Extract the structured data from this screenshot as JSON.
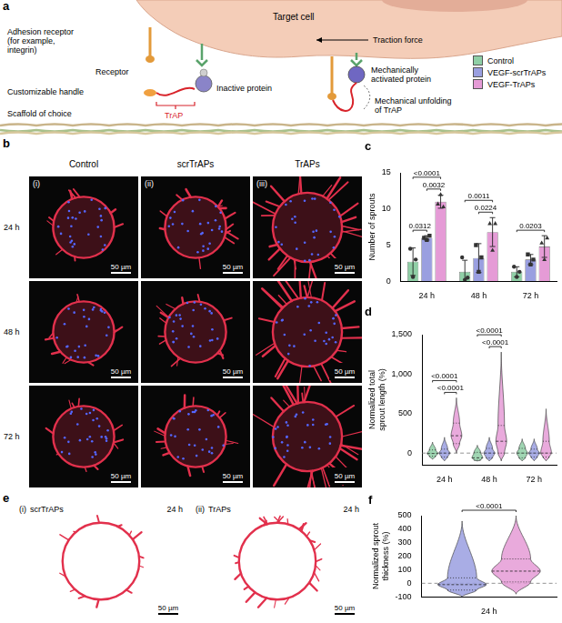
{
  "figure": {
    "a": {
      "letter": "a",
      "target_cell": "Target cell",
      "adhesion_receptor": "Adhesion receptor (for example, integrin)",
      "receptor": "Receptor",
      "traction_force": "Traction force",
      "customizable_handle": "Customizable handle",
      "inactive_protein": "Inactive protein",
      "trap": "TrAP",
      "scaffold": "Scaffold of choice",
      "activated_protein": "Mechanically activated protein",
      "unfolding": "Mechanical unfolding of TrAP"
    },
    "b": {
      "letter": "b",
      "columns": [
        {
          "numeral": "(i)",
          "label": "Control"
        },
        {
          "numeral": "(ii)",
          "label": "scrTrAPs"
        },
        {
          "numeral": "(iii)",
          "label": "TrAPs"
        }
      ],
      "rows": [
        "24 h",
        "48 h",
        "72 h"
      ],
      "scale_bar": "50 µm"
    },
    "e": {
      "letter": "e",
      "images": [
        {
          "numeral": "(i)",
          "label": "scrTrAPs",
          "time": "24 h"
        },
        {
          "numeral": "(ii)",
          "label": "TrAPs",
          "time": "24 h"
        }
      ],
      "scale_bar": "50 µm"
    }
  },
  "chart_data": [
    {
      "panel": "c",
      "type": "bar",
      "categories": [
        "24 h",
        "48 h",
        "72 h"
      ],
      "y_label": "Number of sprouts",
      "ylim": [
        0,
        15
      ],
      "yticks": [
        0,
        5,
        10,
        15
      ],
      "grid": false,
      "series": [
        {
          "name": "Control",
          "color": "#8fcfa6",
          "marker": "circle",
          "values": [
            2.7,
            1.3,
            1.3
          ],
          "errors": [
            1.9,
            1.6,
            0.7
          ],
          "points": [
            [
              4.5,
              0.6,
              3.0
            ],
            [
              3.3,
              0.2,
              0.5
            ],
            [
              2.0,
              0.6,
              1.3
            ]
          ]
        },
        {
          "name": "VEGF-scrTrAPs",
          "color": "#9a9fe0",
          "marker": "square",
          "values": [
            6.0,
            3.2,
            3.0
          ],
          "errors": [
            0.3,
            2.0,
            0.7
          ],
          "points": [
            [
              6.0,
              5.7,
              6.3
            ],
            [
              5.0,
              1.3,
              3.3
            ],
            [
              3.7,
              2.3,
              3.0
            ]
          ]
        },
        {
          "name": "VEGF-TrAPs",
          "color": "#e59bd6",
          "marker": "triangle",
          "values": [
            11.0,
            6.8,
            4.8
          ],
          "errors": [
            0.9,
            2.0,
            1.5
          ],
          "points": [
            [
              10.7,
              12.0,
              10.3
            ],
            [
              8.0,
              4.3,
              8.0
            ],
            [
              5.3,
              3.0,
              6.0
            ]
          ]
        }
      ],
      "significance": [
        {
          "category": "24 h",
          "from": "Control",
          "to": "VEGF-scrTrAPs",
          "label": "0.0312"
        },
        {
          "category": "24 h",
          "from": "Control",
          "to": "VEGF-TrAPs",
          "label": "<0.0001"
        },
        {
          "category": "24 h",
          "from": "VEGF-scrTrAPs",
          "to": "VEGF-TrAPs",
          "label": "0.0032"
        },
        {
          "category": "48 h",
          "from": "Control",
          "to": "VEGF-TrAPs",
          "label": "0.0011"
        },
        {
          "category": "48 h",
          "from": "VEGF-scrTrAPs",
          "to": "VEGF-TrAPs",
          "label": "0.0224"
        },
        {
          "category": "72 h",
          "from": "Control",
          "to": "VEGF-TrAPs",
          "label": "0.0203"
        }
      ]
    },
    {
      "panel": "d",
      "type": "violin",
      "categories": [
        "24 h",
        "48 h",
        "72 h"
      ],
      "y_label": "Normalized total sprout length (%)",
      "ylim": [
        -150,
        1500
      ],
      "yticks": [
        0,
        500,
        {
          "value": 1000,
          "label": "1,000"
        },
        {
          "value": 1500,
          "label": "1,500"
        }
      ],
      "grid": false,
      "baseline": 0,
      "series": [
        {
          "name": "Control",
          "color": "#8fcfa6",
          "min": [
            -80,
            -100,
            -100
          ],
          "q1": [
            -40,
            -90,
            -60
          ],
          "median": [
            -5,
            -60,
            0
          ],
          "q3": [
            40,
            10,
            60
          ],
          "max": [
            140,
            100,
            180
          ]
        },
        {
          "name": "VEGF-scrTrAPs",
          "color": "#9a9fe0",
          "min": [
            -100,
            -100,
            -100
          ],
          "q1": [
            -50,
            -60,
            -50
          ],
          "median": [
            0,
            0,
            0
          ],
          "q3": [
            50,
            60,
            50
          ],
          "max": [
            200,
            200,
            180
          ]
        },
        {
          "name": "VEGF-TrAPs",
          "color": "#e59bd6",
          "min": [
            0,
            -100,
            -100
          ],
          "q1": [
            120,
            0,
            -50
          ],
          "median": [
            220,
            150,
            0
          ],
          "q3": [
            380,
            350,
            150
          ],
          "max": [
            700,
            1280,
            560
          ]
        }
      ],
      "significance": [
        {
          "category": "24 h",
          "from": "Control",
          "to": "VEGF-TrAPs",
          "label": "<0.0001"
        },
        {
          "category": "24 h",
          "from": "VEGF-scrTrAPs",
          "to": "VEGF-TrAPs",
          "label": "<0.0001"
        },
        {
          "category": "48 h",
          "from": "Control",
          "to": "VEGF-TrAPs",
          "label": "<0.0001"
        },
        {
          "category": "48 h",
          "from": "VEGF-scrTrAPs",
          "to": "VEGF-TrAPs",
          "label": "<0.0001"
        }
      ]
    },
    {
      "panel": "f",
      "type": "violin",
      "categories": [
        "24 h"
      ],
      "y_label": "Normalized sprout thickness (%)",
      "ylim": [
        -100,
        500
      ],
      "yticks": [
        -100,
        0,
        100,
        200,
        300,
        400,
        500
      ],
      "grid": false,
      "baseline": 0,
      "series": [
        {
          "name": "VEGF-scrTrAPs",
          "color": "#9a9fe0",
          "min": [
            -100
          ],
          "q1": [
            -50
          ],
          "median": [
            -10
          ],
          "q3": [
            40
          ],
          "max": [
            460
          ]
        },
        {
          "name": "VEGF-TrAPs",
          "color": "#e59bd6",
          "min": [
            -80
          ],
          "q1": [
            10
          ],
          "median": [
            90
          ],
          "q3": [
            180
          ],
          "max": [
            500
          ]
        }
      ],
      "significance": [
        {
          "category": "24 h",
          "from": "VEGF-scrTrAPs",
          "to": "VEGF-TrAPs",
          "label": "<0.0001"
        }
      ]
    }
  ]
}
